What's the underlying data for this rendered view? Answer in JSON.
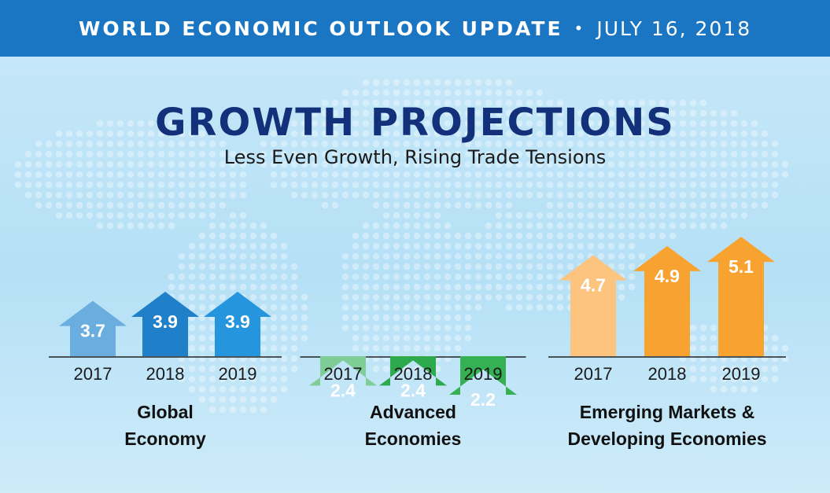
{
  "header": {
    "title": "WORLD ECONOMIC OUTLOOK UPDATE",
    "separator": "•",
    "date": "JULY 16, 2018"
  },
  "title": "GROWTH PROJECTIONS",
  "subtitle": "Less Even Growth, Rising Trade Tensions",
  "chart_data": {
    "type": "bar",
    "groups": [
      {
        "label_lines": [
          "Global",
          "Economy"
        ],
        "categories": [
          "2017",
          "2018",
          "2019"
        ],
        "values": [
          3.7,
          3.9,
          3.9
        ],
        "value_labels": [
          "3.7",
          "3.9",
          "3.9"
        ],
        "colors": [
          "#6aaee0",
          "#1f7fc8",
          "#2596dd"
        ]
      },
      {
        "label_lines": [
          "Advanced",
          "Economies"
        ],
        "categories": [
          "2017",
          "2018",
          "2019"
        ],
        "values": [
          2.4,
          2.4,
          2.2
        ],
        "value_labels": [
          "2.4",
          "2.4",
          "2.2"
        ],
        "colors": [
          "#7fcd96",
          "#2fa94e",
          "#35b052"
        ]
      },
      {
        "label_lines": [
          "Emerging Markets &",
          "Developing Economies"
        ],
        "categories": [
          "2017",
          "2018",
          "2019"
        ],
        "values": [
          4.7,
          4.9,
          5.1
        ],
        "value_labels": [
          "4.7",
          "4.9",
          "5.1"
        ],
        "colors": [
          "#fcc47f",
          "#f7a231",
          "#f8a22f"
        ]
      }
    ]
  }
}
